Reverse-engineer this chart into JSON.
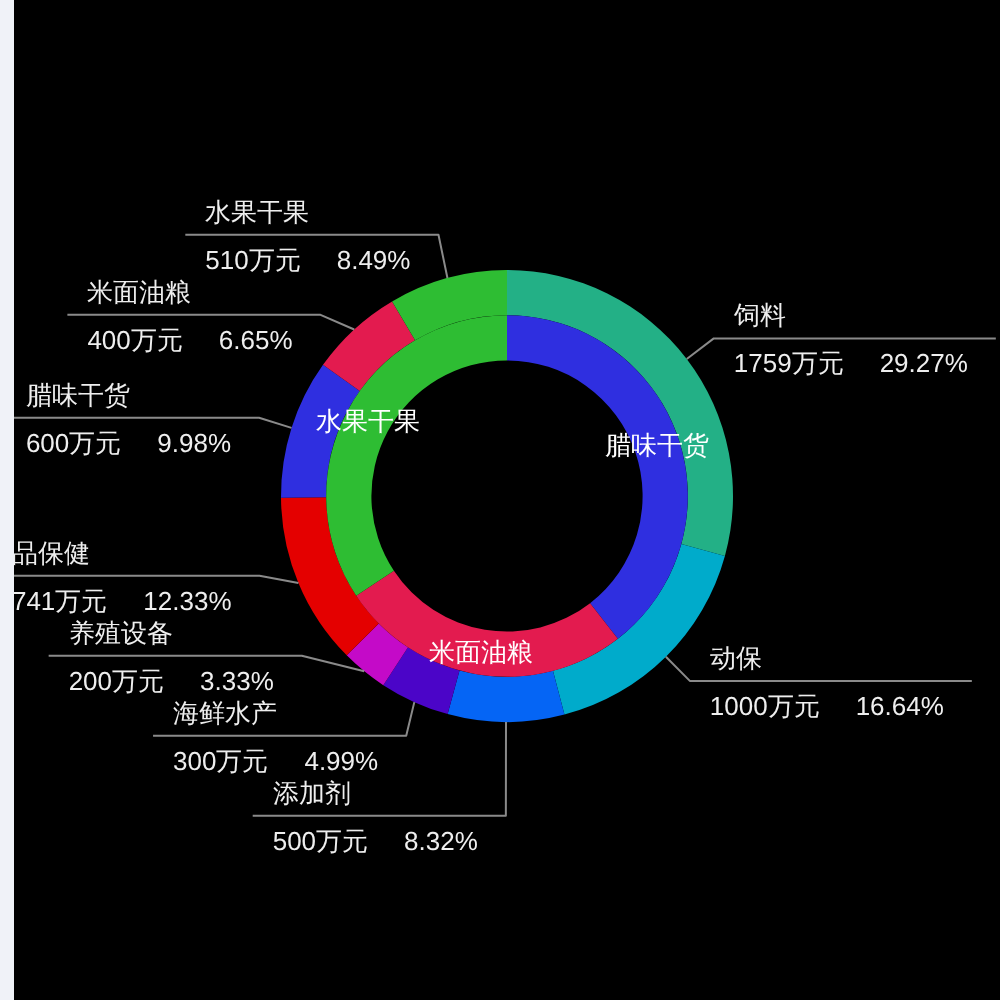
{
  "chart_data": [
    {
      "type": "donut",
      "categories": [
        "腊味干货",
        "米面油粮",
        "水果干果"
      ],
      "values": [
        39.5,
        26.2,
        34.3
      ],
      "colors": [
        "#2f2fe0",
        "#e31b4f",
        "#2ebd33"
      ]
    },
    {
      "type": "donut",
      "categories": [
        "饲料",
        "动保",
        "添加剂",
        "海鲜水产",
        "养殖设备",
        "品保健",
        "腊味干货",
        "米面油粮",
        "水果干果"
      ],
      "values": [
        29.27,
        16.64,
        8.32,
        4.99,
        3.33,
        12.33,
        9.98,
        6.65,
        8.49
      ],
      "colors": [
        "#23b086",
        "#00abcb",
        "#0565f5",
        "#4b05c8",
        "#c40ac8",
        "#e40000",
        "#2f2fe0",
        "#e31b4f",
        "#2ebd33"
      ],
      "value_labels": [
        "1759万元  29.27%",
        "1000万元  16.64%",
        "500万元  8.32%",
        "300万元  4.99%",
        "200万元  3.33%",
        "741万元  12.33%",
        "600万元  9.98%",
        "400万元  6.65%",
        "510万元  8.49%"
      ]
    }
  ]
}
